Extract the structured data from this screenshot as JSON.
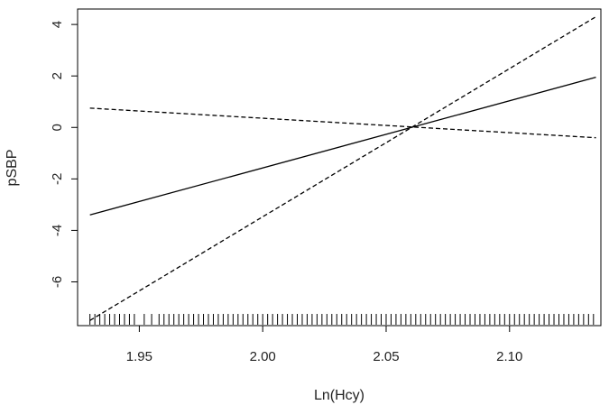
{
  "chart_data": {
    "type": "line",
    "xlabel": "Ln(Hcy)",
    "ylabel": "pSBP",
    "xlim": [
      1.925,
      2.137
    ],
    "ylim": [
      -7.7,
      4.6
    ],
    "x_ticks": [
      1.95,
      2.0,
      2.05,
      2.1
    ],
    "x_tick_labels": [
      "1.95",
      "2.00",
      "2.05",
      "2.10"
    ],
    "y_ticks": [
      -6,
      -4,
      -2,
      0,
      2,
      4
    ],
    "y_tick_labels": [
      "-6",
      "-4",
      "-2",
      "0",
      "2",
      "4"
    ],
    "grid": false,
    "legend": "none",
    "series": [
      {
        "style": "solid",
        "color": "#000000",
        "x": [
          1.93,
          2.135
        ],
        "y": [
          -3.4,
          1.95
        ]
      },
      {
        "style": "dashed",
        "color": "#000000",
        "x": [
          1.93,
          2.135
        ],
        "y": [
          -7.5,
          4.3
        ]
      },
      {
        "style": "dashed",
        "color": "#000000",
        "x": [
          1.93,
          2.135
        ],
        "y": [
          0.75,
          -0.4
        ]
      }
    ],
    "rug": {
      "x": [
        1.93,
        1.932,
        1.934,
        1.936,
        1.938,
        1.94,
        1.942,
        1.944,
        1.946,
        1.948,
        1.952,
        1.955,
        1.958,
        1.96,
        1.962,
        1.964,
        1.966,
        1.968,
        1.97,
        1.972,
        1.974,
        1.976,
        1.978,
        1.98,
        1.982,
        1.984,
        1.986,
        1.988,
        1.99,
        1.992,
        1.994,
        1.996,
        1.998,
        2.0,
        2.002,
        2.004,
        2.006,
        2.008,
        2.01,
        2.012,
        2.014,
        2.016,
        2.018,
        2.02,
        2.022,
        2.024,
        2.026,
        2.028,
        2.03,
        2.032,
        2.034,
        2.036,
        2.038,
        2.04,
        2.042,
        2.044,
        2.046,
        2.048,
        2.05,
        2.052,
        2.054,
        2.056,
        2.058,
        2.06,
        2.062,
        2.064,
        2.066,
        2.068,
        2.07,
        2.072,
        2.074,
        2.076,
        2.078,
        2.08,
        2.082,
        2.084,
        2.086,
        2.088,
        2.09,
        2.092,
        2.094,
        2.096,
        2.098,
        2.1,
        2.102,
        2.104,
        2.106,
        2.108,
        2.11,
        2.112,
        2.114,
        2.116,
        2.118,
        2.12,
        2.122,
        2.124,
        2.126,
        2.128,
        2.13,
        2.132,
        2.134
      ]
    }
  }
}
